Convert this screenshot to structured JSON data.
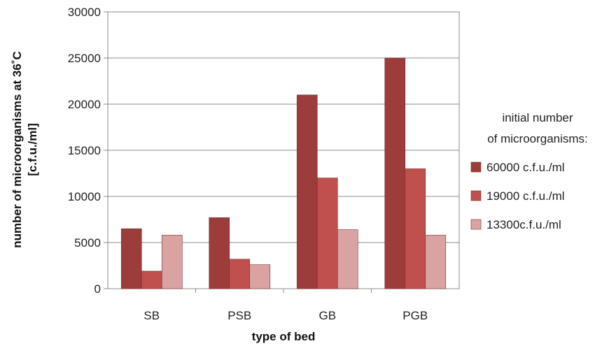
{
  "chart_data": {
    "type": "bar",
    "categories": [
      "SB",
      "PSB",
      "GB",
      "PGB"
    ],
    "series": [
      {
        "name": "60000 c.f.u./ml",
        "values": [
          6500,
          7700,
          21000,
          25000
        ],
        "color": "#9c3c3b"
      },
      {
        "name": "19000 c.f.u./ml",
        "values": [
          1900,
          3200,
          12000,
          13000
        ],
        "color": "#c0504d"
      },
      {
        "name": "13300c.f.u./ml",
        "values": [
          5800,
          2600,
          6400,
          5800
        ],
        "color": "#d9a3a2"
      }
    ],
    "title": "",
    "xlabel": "type of bed",
    "ylabel": [
      "number of microorganisms at 36˚C",
      "[c.f.u./ml]"
    ],
    "ylim": [
      0,
      30000
    ],
    "yticks": [
      0,
      5000,
      10000,
      15000,
      20000,
      25000,
      30000
    ],
    "grid": true,
    "legend": {
      "title": [
        "initial number",
        "of microorganisms:"
      ],
      "placement": "right"
    }
  }
}
